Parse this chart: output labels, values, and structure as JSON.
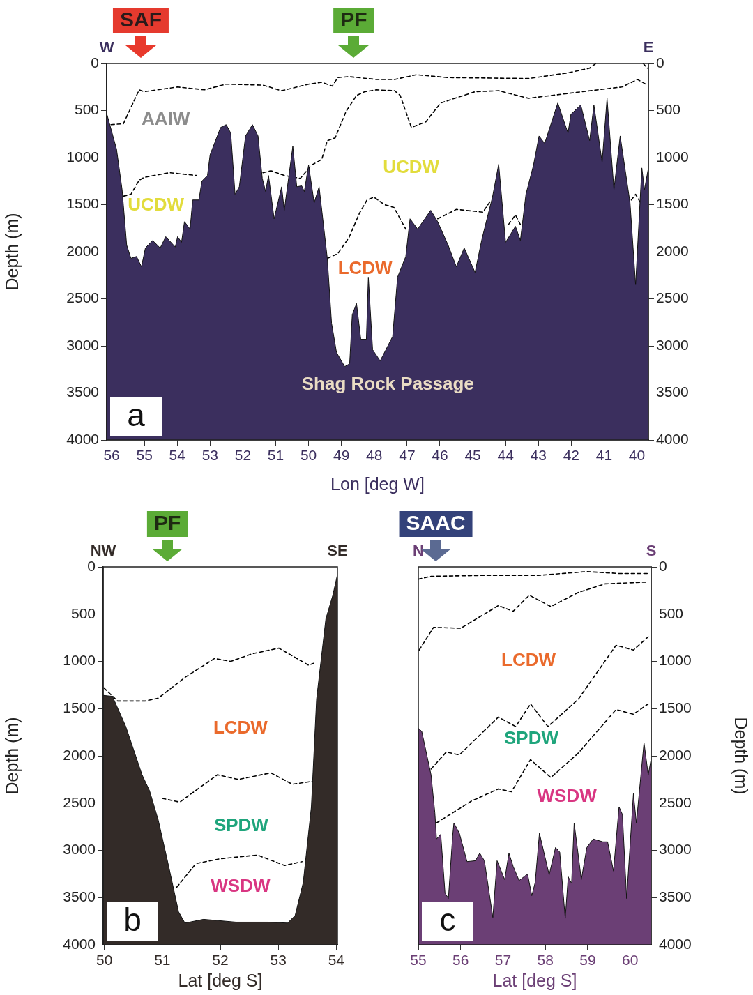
{
  "chart_data": [
    {
      "type": "area",
      "xlabel": "Lon [deg W]",
      "ylabel": "Depth (m)",
      "xlim": [
        56.15,
        39.65
      ],
      "xticks": [
        56,
        55,
        54,
        53,
        52,
        51,
        50,
        49,
        48,
        47,
        46,
        45,
        44,
        43,
        42,
        41,
        40
      ],
      "ylim": [
        4000,
        0
      ],
      "yticks": [
        0,
        500,
        1000,
        1500,
        2000,
        2500,
        3000,
        3500,
        4000
      ],
      "y2lim": [
        4000,
        0
      ],
      "y2ticks": [
        0,
        500,
        1000,
        1500,
        2000,
        2500,
        3000,
        3500,
        4000
      ],
      "x": [
        56.15,
        56.15,
        55.85,
        55.68,
        55.54,
        55.41,
        55.24,
        55.09,
        54.97,
        54.75,
        54.52,
        54.35,
        54.06,
        53.99,
        53.87,
        53.78,
        53.61,
        53.53,
        53.34,
        53.25,
        53.08,
        53.0,
        52.68,
        52.51,
        52.37,
        52.24,
        52.11,
        51.92,
        51.71,
        51.54,
        51.41,
        51.31,
        51.22,
        51.05,
        50.82,
        50.74,
        50.48,
        50.36,
        50.21,
        50.13,
        50.0,
        49.83,
        49.68,
        49.43,
        49.3,
        49.15,
        48.9,
        48.75,
        48.67,
        48.54,
        48.41,
        48.24,
        48.18,
        48.05,
        47.82,
        47.44,
        47.29,
        47.04,
        46.91,
        46.68,
        46.28,
        46.07,
        45.75,
        45.5,
        45.26,
        44.93,
        44.73,
        44.61,
        44.4,
        44.21,
        44.0,
        43.7,
        43.55,
        43.38,
        43.15,
        42.98,
        42.81,
        42.41,
        42.1,
        42.01,
        41.71,
        41.44,
        41.31,
        41.06,
        40.91,
        40.7,
        40.51,
        40.21,
        40.04,
        39.85,
        39.77,
        39.65,
        39.65
      ],
      "series": [
        {
          "type": "area",
          "color": "#3b2f5e",
          "values": [
            4000,
            530,
            910,
            1340,
            1930,
            2070,
            2050,
            2160,
            1960,
            1880,
            1960,
            1840,
            1950,
            1840,
            1900,
            1680,
            1760,
            1450,
            1450,
            1250,
            1190,
            970,
            680,
            650,
            740,
            1390,
            1310,
            770,
            650,
            770,
            1220,
            1360,
            1190,
            1650,
            1310,
            1560,
            880,
            1310,
            1300,
            1360,
            1080,
            1480,
            1310,
            2070,
            2760,
            3070,
            3220,
            3190,
            2670,
            2550,
            2930,
            2930,
            2270,
            3040,
            3160,
            2900,
            2270,
            2050,
            1650,
            1760,
            1560,
            1680,
            1930,
            2160,
            1960,
            2220,
            1880,
            1710,
            1420,
            1070,
            1900,
            1730,
            1880,
            1390,
            1080,
            770,
            850,
            420,
            740,
            540,
            440,
            820,
            440,
            1050,
            370,
            1340,
            770,
            1480,
            2350,
            1110,
            1340,
            1110,
            4000
          ]
        },
        {
          "type": "line",
          "color": "#000000",
          "line_style": "dashed",
          "x": [
            56.02,
            55.64,
            55.16,
            55.01,
            53.99,
            53.17,
            52.51,
            51.39,
            50.82,
            50.0,
            49.6,
            49.28,
            49.11,
            48.77,
            47.93,
            47.38,
            46.72,
            45.75,
            43.3,
            42.1,
            41.44,
            41.25
          ],
          "values": [
            650,
            640,
            280,
            300,
            250,
            280,
            220,
            230,
            290,
            220,
            200,
            240,
            150,
            140,
            170,
            170,
            120,
            150,
            160,
            100,
            50,
            0
          ]
        },
        {
          "type": "line",
          "color": "#000000",
          "line_style": "dashed",
          "x": [
            39.81,
            39.68
          ],
          "values": [
            0,
            50
          ]
        },
        {
          "type": "line",
          "color": "#000000",
          "line_style": "dashed",
          "x": [
            55.64,
            55.41,
            55.16,
            55.01,
            54.23,
            53.42
          ],
          "values": [
            1410,
            1390,
            1240,
            1210,
            1160,
            1190
          ]
        },
        {
          "type": "line",
          "color": "#000000",
          "line_style": "dashed",
          "x": [
            51.39,
            51.14,
            50.74,
            50.25,
            49.91,
            49.6,
            49.43,
            49.19,
            48.86,
            48.54,
            48.29,
            47.93,
            47.38,
            47.21,
            46.87,
            46.43,
            45.98,
            44.93,
            44.21,
            43.3,
            41.67,
            40.46,
            39.98,
            39.68
          ],
          "values": [
            1160,
            1140,
            1190,
            1220,
            1080,
            1020,
            820,
            790,
            510,
            340,
            300,
            280,
            290,
            340,
            680,
            620,
            420,
            300,
            290,
            370,
            300,
            250,
            170,
            230
          ]
        },
        {
          "type": "line",
          "color": "#000000",
          "line_style": "dashed",
          "x": [
            49.43,
            49.11,
            48.77,
            48.45,
            48.22,
            48.01,
            47.69,
            47.4,
            47.04
          ],
          "values": [
            2070,
            2020,
            1850,
            1590,
            1450,
            1420,
            1500,
            1530,
            1760
          ]
        },
        {
          "type": "line",
          "color": "#000000",
          "line_style": "dashed",
          "x": [
            46.07,
            45.5,
            44.69,
            44.44
          ],
          "values": [
            1650,
            1550,
            1580,
            1450
          ]
        },
        {
          "type": "line",
          "color": "#000000",
          "line_style": "dashed",
          "x": [
            43.91,
            43.7,
            43.55
          ],
          "values": [
            1710,
            1610,
            1710
          ]
        },
        {
          "type": "line",
          "color": "#000000",
          "line_style": "dashed",
          "x": [
            40.17,
            40.04,
            39.89
          ],
          "values": [
            1450,
            1390,
            1480
          ]
        }
      ],
      "annotations": [
        "W",
        "E",
        "a",
        "SAF",
        "PF",
        "AAIW",
        "UCDW",
        "UCDW",
        "LCDW",
        "Shag Rock Passage"
      ]
    },
    {
      "type": "area",
      "xlabel": "Lat [deg S]",
      "ylabel": "Depth (m)",
      "xlim": [
        49.98,
        54.02
      ],
      "xticks": [
        50,
        51,
        52,
        53,
        54
      ],
      "ylim": [
        4000,
        0
      ],
      "yticks": [
        0,
        500,
        1000,
        1500,
        2000,
        2500,
        3000,
        3500,
        4000
      ],
      "x": [
        49.98,
        49.98,
        50.14,
        50.37,
        50.65,
        50.78,
        50.93,
        51.11,
        51.28,
        51.39,
        51.71,
        52.27,
        52.83,
        53.16,
        53.29,
        53.43,
        53.57,
        53.66,
        53.82,
        53.94,
        54.02,
        54.02
      ],
      "series": [
        {
          "type": "area",
          "color": "#332b28",
          "values": [
            4000,
            1360,
            1370,
            1690,
            2200,
            2370,
            2680,
            3170,
            3650,
            3770,
            3730,
            3760,
            3760,
            3770,
            3690,
            3340,
            2540,
            1400,
            550,
            300,
            80,
            4000
          ]
        },
        {
          "type": "line",
          "color": "#000000",
          "line_style": "dashed",
          "x": [
            49.99,
            50.23,
            50.7,
            50.93,
            51.39,
            51.9,
            52.18,
            52.55,
            53.01,
            53.52,
            53.61
          ],
          "values": [
            1280,
            1420,
            1420,
            1390,
            1170,
            970,
            1000,
            920,
            860,
            1040,
            1020
          ]
        },
        {
          "type": "line",
          "color": "#000000",
          "line_style": "dashed",
          "x": [
            51.0,
            51.3,
            51.95,
            52.31,
            52.87,
            53.24,
            53.59
          ],
          "values": [
            2450,
            2490,
            2200,
            2250,
            2180,
            2300,
            2270
          ]
        },
        {
          "type": "line",
          "color": "#000000",
          "line_style": "dashed",
          "x": [
            51.25,
            51.58,
            51.99,
            52.64,
            53.11,
            53.41
          ],
          "values": [
            3390,
            3140,
            3090,
            3050,
            3160,
            3120
          ]
        }
      ],
      "annotations": [
        "NW",
        "SE",
        "b",
        "PF",
        "LCDW",
        "SPDW",
        "WSDW"
      ]
    },
    {
      "type": "area",
      "xlabel": "Lat [deg S]",
      "y2label": "Depth (m)",
      "xlim": [
        55,
        60.5
      ],
      "xticks": [
        55,
        56,
        57,
        58,
        59,
        60
      ],
      "y2lim": [
        4000,
        0
      ],
      "y2ticks": [
        0,
        500,
        1000,
        1500,
        2000,
        2500,
        3000,
        3500,
        4000
      ],
      "x": [
        55.0,
        55.0,
        55.08,
        55.3,
        55.39,
        55.43,
        55.53,
        55.63,
        55.71,
        55.81,
        55.84,
        55.97,
        56.15,
        56.35,
        56.45,
        56.56,
        56.76,
        56.86,
        57.04,
        57.14,
        57.24,
        57.38,
        57.58,
        57.68,
        57.76,
        57.86,
        58.09,
        58.24,
        58.34,
        58.47,
        58.54,
        58.62,
        58.68,
        58.85,
        58.98,
        59.13,
        59.36,
        59.47,
        59.61,
        59.74,
        59.82,
        59.92,
        60.08,
        60.15,
        60.33,
        60.43,
        60.5,
        60.5
      ],
      "series": [
        {
          "type": "area",
          "color": "#6b3f75",
          "axis": "y2",
          "values": [
            4000,
            1710,
            1740,
            2200,
            2600,
            2880,
            2830,
            3450,
            3510,
            2850,
            2710,
            2820,
            3120,
            3110,
            3030,
            3110,
            3710,
            3110,
            3310,
            3030,
            3170,
            3320,
            3250,
            3480,
            3340,
            2820,
            3260,
            2970,
            3020,
            3720,
            3280,
            3350,
            2710,
            3310,
            2970,
            2880,
            2910,
            2910,
            3220,
            2540,
            2620,
            3510,
            2400,
            2710,
            1860,
            2200,
            2030,
            4000
          ]
        },
        {
          "type": "line",
          "color": "#000000",
          "line_style": "dashed",
          "axis": "y2",
          "x": [
            55.0,
            55.3,
            56.56,
            57.83,
            58.98,
            59.74,
            60.43
          ],
          "values": [
            130,
            100,
            90,
            90,
            50,
            70,
            70
          ]
        },
        {
          "type": "line",
          "color": "#000000",
          "line_style": "dashed",
          "axis": "y2",
          "x": [
            55.02,
            55.36,
            56.0,
            56.89,
            57.24,
            57.62,
            58.13,
            58.78,
            59.41,
            60.43
          ],
          "values": [
            880,
            640,
            650,
            410,
            470,
            300,
            420,
            270,
            180,
            160
          ]
        },
        {
          "type": "line",
          "color": "#000000",
          "line_style": "dashed",
          "axis": "y2",
          "x": [
            55.3,
            55.66,
            55.97,
            56.89,
            57.3,
            57.65,
            58.06,
            58.78,
            59.67,
            60.08,
            60.43
          ],
          "values": [
            2140,
            1960,
            1990,
            1590,
            1690,
            1450,
            1690,
            1400,
            830,
            880,
            740
          ]
        },
        {
          "type": "line",
          "color": "#000000",
          "line_style": "dashed",
          "axis": "y2",
          "x": [
            55.43,
            56.25,
            56.89,
            57.2,
            57.65,
            58.13,
            58.78,
            59.67,
            60.08,
            60.43
          ],
          "values": [
            2710,
            2480,
            2350,
            2380,
            2040,
            2230,
            1970,
            1510,
            1560,
            1450
          ]
        }
      ],
      "annotations": [
        "N",
        "S",
        "c",
        "SAAC",
        "LCDW",
        "SPDW",
        "WSDW"
      ]
    }
  ]
}
